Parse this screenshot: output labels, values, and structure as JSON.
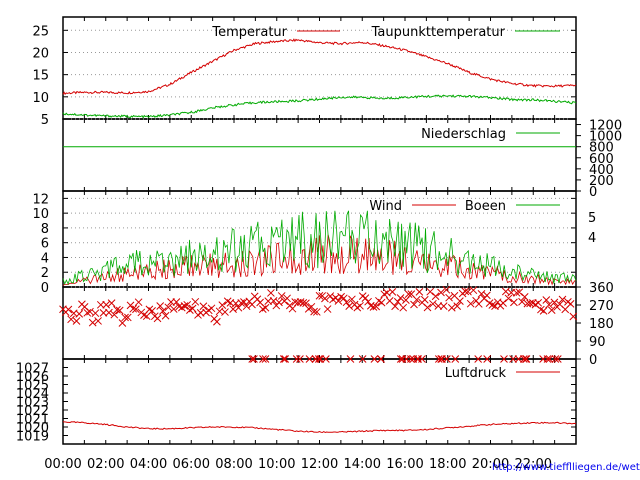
{
  "footer": {
    "url": "http://www.tiefflliegen.de/wetter/"
  },
  "colors": {
    "red": "#d40000",
    "green": "#00aa00",
    "axis": "#000000",
    "grid": "#999999"
  },
  "chart_data": [
    {
      "type": "line",
      "panel": "temperature",
      "ylim": [
        5,
        28
      ],
      "yticks": [
        "25",
        "20",
        "15",
        "10",
        "5"
      ],
      "grid": true,
      "legend_position": "top-right",
      "series": [
        {
          "name": "Temperatur",
          "color": "#d40000",
          "x": [
            0,
            1,
            2,
            3,
            4,
            5,
            6,
            7,
            8,
            9,
            10,
            11,
            12,
            13,
            14,
            15,
            16,
            17,
            18,
            19,
            20,
            21,
            22,
            23,
            24
          ],
          "values": [
            10.8,
            11.0,
            11.0,
            10.9,
            11.2,
            12.8,
            15.5,
            18.0,
            20.5,
            22.0,
            22.5,
            22.8,
            22.2,
            22.0,
            22.3,
            21.5,
            20.5,
            19.0,
            17.5,
            15.5,
            14.0,
            13.0,
            12.5,
            12.4,
            12.6
          ]
        },
        {
          "name": "Taupunkttemperatur",
          "color": "#00aa00",
          "x": [
            0,
            1,
            2,
            3,
            4,
            5,
            6,
            7,
            8,
            9,
            10,
            11,
            12,
            13,
            14,
            15,
            16,
            17,
            18,
            19,
            20,
            21,
            22,
            23,
            24
          ],
          "values": [
            6.2,
            5.9,
            5.7,
            5.6,
            5.5,
            5.9,
            6.5,
            7.5,
            8.2,
            8.7,
            8.9,
            9.1,
            9.5,
            9.9,
            9.9,
            9.6,
            9.9,
            10.1,
            10.2,
            10.1,
            9.8,
            9.4,
            9.3,
            9.0,
            8.6
          ]
        }
      ]
    },
    {
      "type": "line",
      "panel": "precipitation",
      "ylim": [
        0,
        1300
      ],
      "yticks": [
        "1200",
        "1000",
        "800",
        "600",
        "400",
        "200",
        "0"
      ],
      "legend_position": "top-right",
      "series": [
        {
          "name": "Niederschlag",
          "color": "#00aa00",
          "x": [
            0,
            24
          ],
          "values": [
            800,
            800
          ]
        }
      ]
    },
    {
      "type": "line",
      "panel": "wind",
      "ylim": [
        0,
        13
      ],
      "yticks": [
        "12",
        "10",
        "8",
        "6",
        "4",
        "2",
        "0"
      ],
      "right_ticks": [
        "5",
        "4"
      ],
      "grid": true,
      "legend_position": "top-right",
      "series": [
        {
          "name": "Wind",
          "color": "#d40000",
          "x": [
            0,
            1,
            2,
            3,
            4,
            5,
            6,
            7,
            8,
            9,
            10,
            11,
            12,
            13,
            14,
            15,
            16,
            17,
            18,
            19,
            20,
            21,
            22,
            23,
            24
          ],
          "values": [
            0.6,
            0.9,
            1.4,
            2.0,
            2.3,
            2.6,
            2.9,
            3.2,
            3.5,
            3.9,
            4.3,
            4.6,
            4.8,
            4.7,
            4.9,
            4.5,
            4.0,
            3.5,
            3.0,
            2.5,
            2.0,
            1.5,
            1.2,
            0.8,
            0.7
          ]
        },
        {
          "name": "Boeen",
          "color": "#00aa00",
          "x": [
            0,
            1,
            2,
            3,
            4,
            5,
            6,
            7,
            8,
            9,
            10,
            11,
            12,
            13,
            14,
            15,
            16,
            17,
            18,
            19,
            20,
            21,
            22,
            23,
            24
          ],
          "values": [
            1.0,
            1.6,
            2.4,
            3.2,
            3.6,
            4.0,
            4.5,
            5.0,
            5.4,
            6.0,
            6.6,
            7.0,
            7.2,
            7.0,
            7.3,
            6.8,
            6.2,
            5.4,
            4.6,
            3.8,
            3.0,
            2.3,
            1.8,
            1.3,
            1.2
          ]
        }
      ]
    },
    {
      "type": "scatter",
      "panel": "wind-direction",
      "ylim": [
        0,
        360
      ],
      "right_ticks": [
        "360",
        "270",
        "180",
        "90",
        "0"
      ],
      "series": [
        {
          "name": "",
          "color": "#d40000",
          "x": [
            0,
            0.5,
            1,
            1.5,
            2,
            2.5,
            3,
            3.5,
            4,
            4.5,
            5,
            5.5,
            6,
            6.5,
            7,
            7.5,
            8,
            8.5,
            9,
            9.5,
            10,
            10.5,
            11,
            11.5,
            12,
            12.5,
            13,
            13.5,
            14,
            14.5,
            15,
            15.5,
            16,
            16.5,
            17,
            17.5,
            18,
            18.5,
            19,
            19.5,
            20,
            20.5,
            21,
            21.5,
            22,
            22.5,
            23,
            23.5,
            24
          ],
          "values": [
            220,
            230,
            240,
            200,
            250,
            230,
            210,
            260,
            235,
            225,
            250,
            270,
            230,
            260,
            220,
            240,
            250,
            280,
            270,
            300,
            290,
            260,
            280,
            250,
            290,
            270,
            300,
            260,
            290,
            280,
            310,
            300,
            280,
            300,
            290,
            310,
            300,
            290,
            310,
            290,
            300,
            310,
            290,
            300,
            280,
            270,
            280,
            250,
            220
          ]
        }
      ]
    },
    {
      "type": "line",
      "panel": "pressure",
      "ylim": [
        1018,
        1028
      ],
      "yticks": [
        "1027",
        "1026",
        "1025",
        "1024",
        "1023",
        "1022",
        "1021",
        "1020",
        "1019"
      ],
      "legend_position": "top-right",
      "xticks": [
        "00:00",
        "02:00",
        "04:00",
        "06:00",
        "08:00",
        "10:00",
        "12:00",
        "14:00",
        "16:00",
        "18:00",
        "20:00",
        "22:00"
      ],
      "series": [
        {
          "name": "Luftdruck",
          "color": "#d40000",
          "x": [
            0,
            1,
            2,
            3,
            4,
            5,
            6,
            7,
            8,
            9,
            10,
            11,
            12,
            13,
            14,
            15,
            16,
            17,
            18,
            19,
            20,
            21,
            22,
            23,
            24
          ],
          "values": [
            1020.6,
            1020.5,
            1020.3,
            1020.0,
            1019.8,
            1019.8,
            1019.9,
            1020.0,
            1020.0,
            1019.9,
            1019.7,
            1019.5,
            1019.4,
            1019.4,
            1019.5,
            1019.6,
            1019.6,
            1019.7,
            1019.9,
            1020.1,
            1020.3,
            1020.4,
            1020.5,
            1020.5,
            1020.4
          ]
        }
      ]
    }
  ]
}
